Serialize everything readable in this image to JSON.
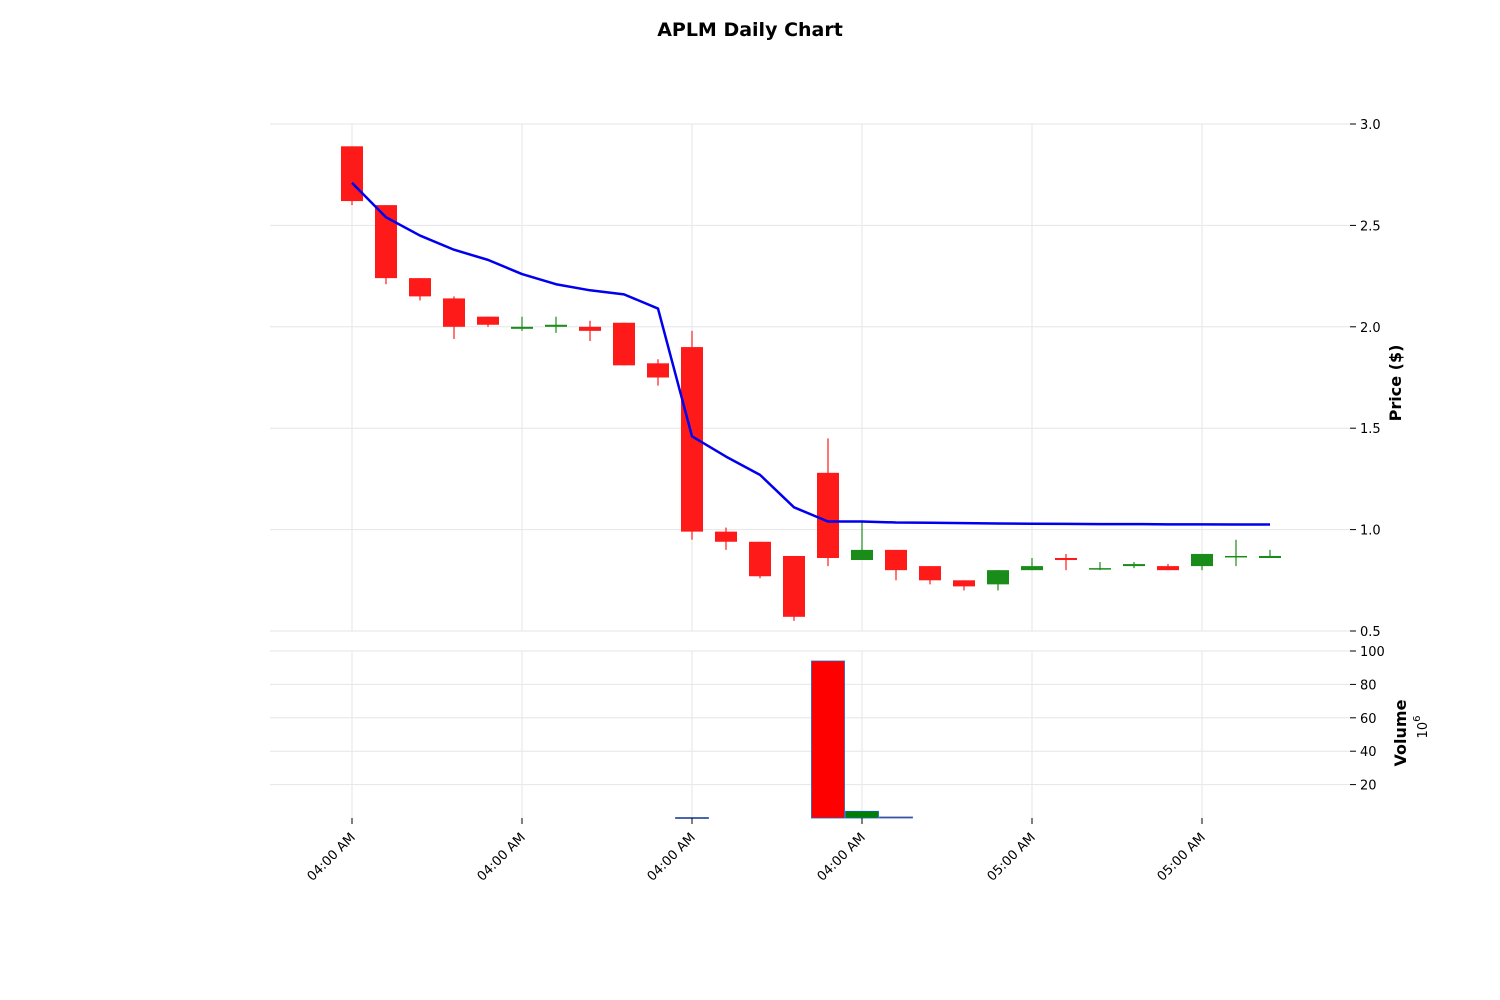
{
  "chart_data": {
    "type": "candlestick",
    "title": "APLM Daily Chart",
    "price_axis": {
      "label": "Price ($)",
      "ylim": [
        0.5,
        3.0
      ],
      "ticks": [
        0.5,
        1.0,
        1.5,
        2.0,
        2.5,
        3.0
      ],
      "tick_labels": [
        "0.5",
        "1.0",
        "1.5",
        "2.0",
        "2.5",
        "3.0"
      ],
      "side": "right"
    },
    "volume_axis": {
      "label": "Volume",
      "exponent_label": "6",
      "exponent_base": "10",
      "ylim": [
        0,
        100
      ],
      "ticks": [
        20,
        40,
        60,
        80,
        100
      ],
      "tick_labels": [
        "20",
        "40",
        "60",
        "80",
        "100"
      ],
      "side": "right"
    },
    "x_tick_labels": [
      {
        "index": 0,
        "label": "04:00 AM"
      },
      {
        "index": 5,
        "label": "04:00 AM"
      },
      {
        "index": 10,
        "label": "04:00 AM"
      },
      {
        "index": 15,
        "label": "04:00 AM"
      },
      {
        "index": 20,
        "label": "05:00 AM"
      },
      {
        "index": 25,
        "label": "05:00 AM"
      }
    ],
    "grid": true,
    "candles": [
      {
        "o": 2.89,
        "h": 2.89,
        "l": 2.6,
        "c": 2.62
      },
      {
        "o": 2.6,
        "h": 2.6,
        "l": 2.21,
        "c": 2.24
      },
      {
        "o": 2.24,
        "h": 2.24,
        "l": 2.13,
        "c": 2.15
      },
      {
        "o": 2.14,
        "h": 2.15,
        "l": 1.94,
        "c": 2.0
      },
      {
        "o": 2.05,
        "h": 2.05,
        "l": 2.0,
        "c": 2.01
      },
      {
        "o": 1.99,
        "h": 2.05,
        "l": 1.98,
        "c": 2.0
      },
      {
        "o": 2.0,
        "h": 2.05,
        "l": 1.97,
        "c": 2.01
      },
      {
        "o": 2.0,
        "h": 2.03,
        "l": 1.93,
        "c": 1.98
      },
      {
        "o": 2.02,
        "h": 2.02,
        "l": 1.81,
        "c": 1.81
      },
      {
        "o": 1.82,
        "h": 1.84,
        "l": 1.71,
        "c": 1.75
      },
      {
        "o": 1.9,
        "h": 1.98,
        "l": 0.95,
        "c": 0.99
      },
      {
        "o": 0.99,
        "h": 1.01,
        "l": 0.9,
        "c": 0.94
      },
      {
        "o": 0.94,
        "h": 0.94,
        "l": 0.76,
        "c": 0.77
      },
      {
        "o": 0.87,
        "h": 0.87,
        "l": 0.55,
        "c": 0.57
      },
      {
        "o": 1.28,
        "h": 1.45,
        "l": 0.82,
        "c": 0.86
      },
      {
        "o": 0.85,
        "h": 1.04,
        "l": 0.85,
        "c": 0.9
      },
      {
        "o": 0.9,
        "h": 0.9,
        "l": 0.75,
        "c": 0.8
      },
      {
        "o": 0.82,
        "h": 0.82,
        "l": 0.73,
        "c": 0.75
      },
      {
        "o": 0.75,
        "h": 0.75,
        "l": 0.7,
        "c": 0.72
      },
      {
        "o": 0.73,
        "h": 0.8,
        "l": 0.7,
        "c": 0.8
      },
      {
        "o": 0.8,
        "h": 0.86,
        "l": 0.8,
        "c": 0.82
      },
      {
        "o": 0.86,
        "h": 0.88,
        "l": 0.8,
        "c": 0.85
      },
      {
        "o": 0.81,
        "h": 0.84,
        "l": 0.8,
        "c": 0.81
      },
      {
        "o": 0.82,
        "h": 0.84,
        "l": 0.81,
        "c": 0.83
      },
      {
        "o": 0.82,
        "h": 0.83,
        "l": 0.8,
        "c": 0.8
      },
      {
        "o": 0.82,
        "h": 0.88,
        "l": 0.8,
        "c": 0.88
      },
      {
        "o": 0.87,
        "h": 0.95,
        "l": 0.82,
        "c": 0.87
      },
      {
        "o": 0.86,
        "h": 0.9,
        "l": 0.86,
        "c": 0.87
      }
    ],
    "moving_average": [
      2.71,
      2.54,
      2.45,
      2.38,
      2.33,
      2.26,
      2.21,
      2.18,
      2.16,
      2.09,
      1.46,
      1.36,
      1.27,
      1.11,
      1.04,
      1.04,
      1.035,
      1.034,
      1.032,
      1.03,
      1.029,
      1.028,
      1.027,
      1.027,
      1.026,
      1.026,
      1.025,
      1.025
    ],
    "volume": [
      0,
      0,
      0,
      0,
      0,
      0,
      0,
      0,
      0,
      0,
      0.3,
      0,
      0,
      0,
      94,
      4,
      0.6,
      0,
      0,
      0,
      0,
      0,
      0,
      0,
      0,
      0,
      0,
      0
    ],
    "colors": {
      "up": "#1a8c1a",
      "down": "#ff1a1a",
      "moving_average": "#0000ee",
      "volume_up": "#008000",
      "volume_down": "#ff0000",
      "volume_edge": "#1f5fbf"
    }
  }
}
